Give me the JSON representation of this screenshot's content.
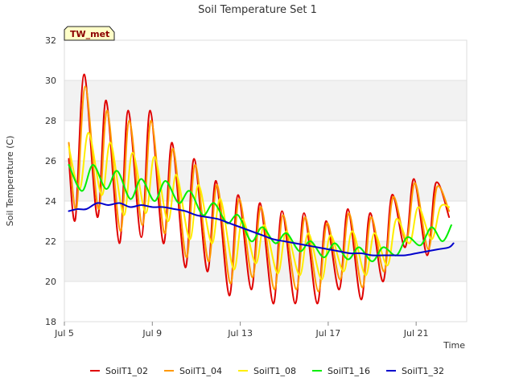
{
  "chart_data": {
    "type": "line",
    "title": "Soil Temperature Set 1",
    "xlabel": "Time",
    "ylabel": "Soil Temperature (C)",
    "badge": "TW_met",
    "ylim": [
      18,
      32
    ],
    "yticks": [
      18,
      20,
      22,
      24,
      26,
      28,
      30,
      32
    ],
    "xlim": [
      5.0,
      23.3
    ],
    "xticks": [
      {
        "day": 5,
        "label": "Jul 5"
      },
      {
        "day": 9,
        "label": "Jul 9"
      },
      {
        "day": 13,
        "label": "Jul 13"
      },
      {
        "day": 17,
        "label": "Jul 17"
      },
      {
        "day": 21,
        "label": "Jul 21"
      }
    ],
    "grid": true,
    "legend_position": "bottom",
    "series": [
      {
        "name": "SoilT1_02",
        "color": "#e00000",
        "points": [
          [
            5.2,
            26.1
          ],
          [
            5.5,
            23.1
          ],
          [
            5.9,
            30.3
          ],
          [
            6.5,
            23.2
          ],
          [
            6.9,
            29.0
          ],
          [
            7.5,
            21.9
          ],
          [
            7.9,
            28.5
          ],
          [
            8.5,
            22.2
          ],
          [
            8.9,
            28.5
          ],
          [
            9.5,
            21.9
          ],
          [
            9.9,
            26.9
          ],
          [
            10.5,
            20.7
          ],
          [
            10.9,
            26.1
          ],
          [
            11.5,
            20.5
          ],
          [
            11.9,
            25.0
          ],
          [
            12.5,
            19.3
          ],
          [
            12.9,
            24.3
          ],
          [
            13.5,
            19.6
          ],
          [
            13.9,
            23.9
          ],
          [
            14.5,
            18.9
          ],
          [
            14.9,
            23.5
          ],
          [
            15.5,
            18.9
          ],
          [
            15.9,
            23.4
          ],
          [
            16.5,
            18.9
          ],
          [
            16.9,
            23.0
          ],
          [
            17.5,
            19.6
          ],
          [
            17.9,
            23.6
          ],
          [
            18.5,
            19.1
          ],
          [
            18.9,
            23.4
          ],
          [
            19.5,
            20.0
          ],
          [
            19.9,
            24.3
          ],
          [
            20.5,
            21.7
          ],
          [
            20.9,
            25.1
          ],
          [
            21.5,
            21.3
          ],
          [
            21.9,
            24.9
          ],
          [
            22.5,
            23.2
          ]
        ]
      },
      {
        "name": "SoilT1_04",
        "color": "#ff9900",
        "points": [
          [
            5.2,
            26.9
          ],
          [
            5.55,
            23.6
          ],
          [
            5.95,
            29.7
          ],
          [
            6.55,
            23.6
          ],
          [
            6.95,
            28.5
          ],
          [
            7.55,
            22.5
          ],
          [
            7.95,
            28.0
          ],
          [
            8.55,
            22.8
          ],
          [
            8.95,
            28.0
          ],
          [
            9.55,
            22.4
          ],
          [
            9.95,
            26.6
          ],
          [
            10.55,
            21.2
          ],
          [
            10.95,
            25.8
          ],
          [
            11.55,
            21.0
          ],
          [
            11.95,
            24.8
          ],
          [
            12.55,
            19.9
          ],
          [
            12.95,
            24.1
          ],
          [
            13.55,
            20.2
          ],
          [
            13.95,
            23.7
          ],
          [
            14.55,
            19.6
          ],
          [
            14.95,
            23.3
          ],
          [
            15.55,
            19.6
          ],
          [
            15.95,
            23.2
          ],
          [
            16.55,
            19.5
          ],
          [
            16.95,
            22.9
          ],
          [
            17.55,
            20.1
          ],
          [
            17.95,
            23.4
          ],
          [
            18.55,
            19.7
          ],
          [
            18.95,
            23.2
          ],
          [
            19.55,
            20.5
          ],
          [
            19.95,
            24.2
          ],
          [
            20.55,
            22.0
          ],
          [
            20.95,
            24.9
          ],
          [
            21.55,
            21.6
          ],
          [
            21.95,
            24.7
          ],
          [
            22.5,
            23.5
          ]
        ]
      },
      {
        "name": "SoilT1_08",
        "color": "#ffee00",
        "points": [
          [
            5.2,
            26.7
          ],
          [
            5.7,
            24.6
          ],
          [
            6.1,
            27.4
          ],
          [
            6.7,
            24.3
          ],
          [
            7.1,
            26.9
          ],
          [
            7.7,
            23.3
          ],
          [
            8.1,
            26.4
          ],
          [
            8.7,
            23.4
          ],
          [
            9.1,
            26.2
          ],
          [
            9.7,
            23.0
          ],
          [
            10.1,
            25.3
          ],
          [
            10.7,
            22.1
          ],
          [
            11.1,
            24.8
          ],
          [
            11.7,
            21.9
          ],
          [
            12.1,
            24.1
          ],
          [
            12.7,
            20.6
          ],
          [
            13.1,
            23.1
          ],
          [
            13.7,
            20.9
          ],
          [
            14.1,
            22.8
          ],
          [
            14.7,
            20.4
          ],
          [
            15.1,
            22.5
          ],
          [
            15.7,
            20.3
          ],
          [
            16.1,
            22.4
          ],
          [
            16.7,
            20.1
          ],
          [
            17.1,
            22.3
          ],
          [
            17.7,
            20.5
          ],
          [
            18.1,
            22.5
          ],
          [
            18.7,
            20.3
          ],
          [
            19.1,
            22.4
          ],
          [
            19.7,
            20.8
          ],
          [
            20.1,
            23.1
          ],
          [
            20.7,
            21.9
          ],
          [
            21.1,
            23.7
          ],
          [
            21.7,
            22.1
          ],
          [
            22.1,
            23.7
          ],
          [
            22.5,
            23.7
          ]
        ]
      },
      {
        "name": "SoilT1_16",
        "color": "#00ee00",
        "points": [
          [
            5.2,
            25.8
          ],
          [
            5.8,
            24.5
          ],
          [
            6.3,
            25.8
          ],
          [
            6.9,
            24.6
          ],
          [
            7.4,
            25.5
          ],
          [
            8.0,
            24.1
          ],
          [
            8.5,
            25.1
          ],
          [
            9.1,
            24.0
          ],
          [
            9.6,
            25.0
          ],
          [
            10.2,
            23.9
          ],
          [
            10.7,
            24.5
          ],
          [
            11.3,
            23.3
          ],
          [
            11.8,
            23.9
          ],
          [
            12.4,
            22.9
          ],
          [
            12.9,
            23.3
          ],
          [
            13.5,
            22.0
          ],
          [
            14.0,
            22.7
          ],
          [
            14.6,
            21.9
          ],
          [
            15.1,
            22.4
          ],
          [
            15.7,
            21.5
          ],
          [
            16.2,
            22.0
          ],
          [
            16.8,
            21.2
          ],
          [
            17.3,
            21.9
          ],
          [
            17.9,
            21.1
          ],
          [
            18.4,
            21.7
          ],
          [
            19.0,
            21.0
          ],
          [
            19.5,
            21.7
          ],
          [
            20.1,
            21.3
          ],
          [
            20.6,
            22.2
          ],
          [
            21.2,
            21.8
          ],
          [
            21.7,
            22.7
          ],
          [
            22.2,
            22.0
          ],
          [
            22.6,
            22.8
          ]
        ]
      },
      {
        "name": "SoilT1_32",
        "color": "#0000cc",
        "points": [
          [
            5.2,
            23.5
          ],
          [
            5.6,
            23.6
          ],
          [
            6.0,
            23.6
          ],
          [
            6.5,
            23.9
          ],
          [
            7.0,
            23.8
          ],
          [
            7.5,
            23.9
          ],
          [
            8.0,
            23.7
          ],
          [
            8.5,
            23.8
          ],
          [
            9.0,
            23.7
          ],
          [
            9.5,
            23.7
          ],
          [
            10.0,
            23.6
          ],
          [
            10.5,
            23.5
          ],
          [
            11.0,
            23.3
          ],
          [
            11.5,
            23.2
          ],
          [
            12.0,
            23.1
          ],
          [
            12.5,
            22.9
          ],
          [
            13.0,
            22.7
          ],
          [
            13.5,
            22.5
          ],
          [
            14.0,
            22.3
          ],
          [
            14.5,
            22.1
          ],
          [
            15.0,
            22.0
          ],
          [
            15.5,
            21.9
          ],
          [
            16.0,
            21.8
          ],
          [
            16.5,
            21.7
          ],
          [
            17.0,
            21.6
          ],
          [
            17.5,
            21.5
          ],
          [
            18.0,
            21.4
          ],
          [
            18.5,
            21.4
          ],
          [
            19.0,
            21.3
          ],
          [
            19.5,
            21.3
          ],
          [
            20.0,
            21.3
          ],
          [
            20.5,
            21.3
          ],
          [
            21.0,
            21.4
          ],
          [
            21.5,
            21.5
          ],
          [
            22.0,
            21.6
          ],
          [
            22.5,
            21.7
          ],
          [
            22.7,
            21.9
          ]
        ]
      }
    ]
  }
}
